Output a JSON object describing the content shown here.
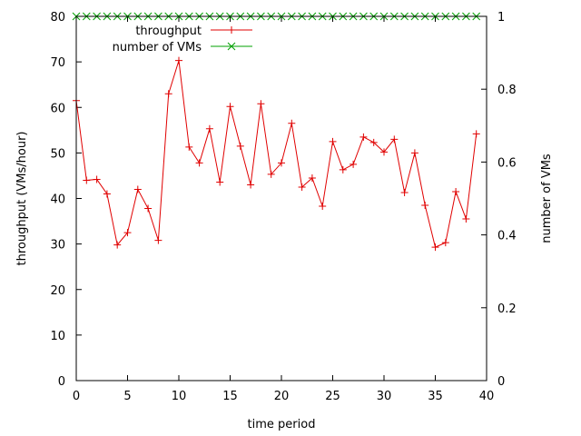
{
  "chart_data": {
    "type": "line",
    "xlabel": "time period",
    "ylabel": "throughput (VMs/hour)",
    "y2label": "number of VMs",
    "xlim": [
      0,
      40
    ],
    "ylim": [
      0,
      80
    ],
    "y2lim": [
      0,
      1
    ],
    "x_ticks": [
      0,
      5,
      10,
      15,
      20,
      25,
      30,
      35,
      40
    ],
    "y_ticks": [
      0,
      10,
      20,
      30,
      40,
      50,
      60,
      70,
      80
    ],
    "y2_ticks": [
      0,
      0.2,
      0.4,
      0.6,
      0.8,
      1
    ],
    "x_tick_labels": [
      "0",
      "5",
      "10",
      "15",
      "20",
      "25",
      "30",
      "35",
      "40"
    ],
    "y_tick_labels": [
      "0",
      "10",
      "20",
      "30",
      "40",
      "50",
      "60",
      "70",
      "80"
    ],
    "y2_tick_labels": [
      "0",
      "0.2",
      "0.4",
      "0.6",
      "0.8",
      "1"
    ],
    "grid": false,
    "legend_position": "top-left",
    "series": [
      {
        "name": "throughput",
        "axis": "y",
        "color": "#e00000",
        "marker": "plus",
        "x": [
          0,
          1,
          2,
          3,
          4,
          5,
          6,
          7,
          8,
          9,
          10,
          11,
          12,
          13,
          14,
          15,
          16,
          17,
          18,
          19,
          20,
          21,
          22,
          23,
          24,
          25,
          26,
          27,
          28,
          29,
          30,
          31,
          32,
          33,
          34,
          35,
          36,
          37,
          38,
          39
        ],
        "values": [
          61.5,
          44,
          44.2,
          41,
          29.8,
          32.5,
          42,
          37.8,
          30.8,
          63,
          70.3,
          51.3,
          47.8,
          55.3,
          43.6,
          60.2,
          51.5,
          43,
          60.8,
          45.3,
          47.8,
          56.5,
          42.5,
          44.5,
          38.3,
          52.5,
          46.3,
          47.5,
          53.5,
          52.3,
          50.2,
          53,
          41.3,
          50,
          38.5,
          29.3,
          30.3,
          41.5,
          35.5,
          54.2
        ]
      },
      {
        "name": "number of VMs",
        "axis": "y2",
        "color": "#00a000",
        "marker": "x",
        "x": [
          0,
          1,
          2,
          3,
          4,
          5,
          6,
          7,
          8,
          9,
          10,
          11,
          12,
          13,
          14,
          15,
          16,
          17,
          18,
          19,
          20,
          21,
          22,
          23,
          24,
          25,
          26,
          27,
          28,
          29,
          30,
          31,
          32,
          33,
          34,
          35,
          36,
          37,
          38,
          39
        ],
        "values": [
          1,
          1,
          1,
          1,
          1,
          1,
          1,
          1,
          1,
          1,
          1,
          1,
          1,
          1,
          1,
          1,
          1,
          1,
          1,
          1,
          1,
          1,
          1,
          1,
          1,
          1,
          1,
          1,
          1,
          1,
          1,
          1,
          1,
          1,
          1,
          1,
          1,
          1,
          1,
          1
        ]
      }
    ]
  }
}
